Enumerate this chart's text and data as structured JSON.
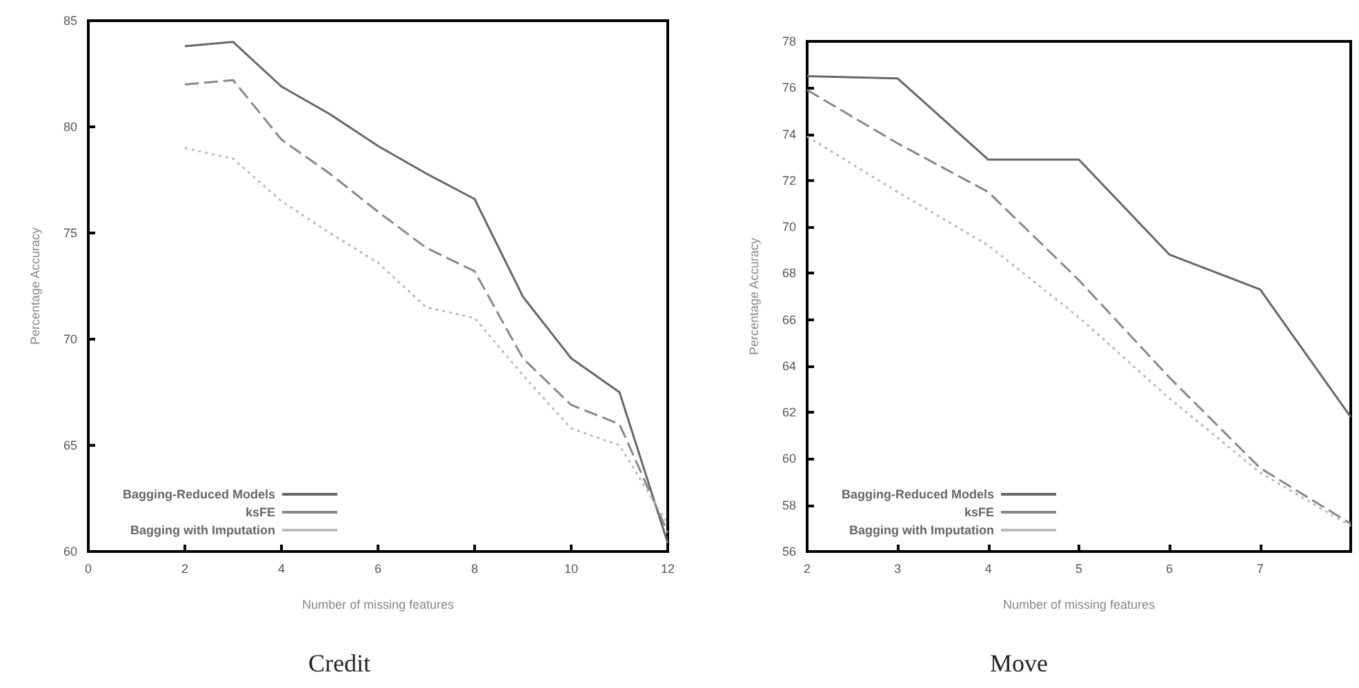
{
  "chart_data": [
    {
      "type": "line",
      "title": "Credit",
      "xlabel": "Number of missing features",
      "ylabel": "Percentage Accuracy",
      "x": [
        2,
        3,
        4,
        5,
        6,
        7,
        8,
        9,
        10,
        11,
        12
      ],
      "series": [
        {
          "name": "Bagging-Reduced Models",
          "color": "#666666",
          "line_style": "solid",
          "values": [
            83.8,
            84.0,
            81.9,
            80.6,
            79.1,
            77.8,
            76.6,
            72.0,
            69.1,
            67.5,
            60.4
          ]
        },
        {
          "name": "ksFE",
          "color": "#888888",
          "line_style": "dashed",
          "values": [
            82.0,
            82.2,
            79.4,
            77.8,
            76.0,
            74.3,
            73.2,
            69.1,
            66.9,
            66.0,
            60.9
          ]
        },
        {
          "name": "Bagging with Imputation",
          "color": "#bbbbbb",
          "line_style": "dotted",
          "values": [
            79.0,
            78.5,
            76.5,
            75.0,
            73.6,
            71.5,
            71.0,
            68.3,
            65.8,
            65.0,
            61.3
          ]
        }
      ],
      "xlim": [
        0,
        12
      ],
      "xticks": [
        0,
        2,
        4,
        6,
        8,
        10,
        12
      ],
      "ylim": [
        60,
        85
      ],
      "yticks": [
        60,
        65,
        70,
        75,
        80,
        85
      ],
      "grid": false,
      "legend": "bottom left",
      "marker": "none"
    },
    {
      "type": "line",
      "title": "Move",
      "xlabel": "Number of missing features",
      "ylabel": "Percentage Accuracy",
      "x": [
        2,
        3,
        4,
        5,
        6,
        7,
        8
      ],
      "series": [
        {
          "name": "Bagging-Reduced Models",
          "color": "#666666",
          "line_style": "solid",
          "values": [
            76.5,
            76.4,
            72.9,
            72.9,
            68.8,
            67.3,
            61.8
          ]
        },
        {
          "name": "ksFE",
          "color": "#888888",
          "line_style": "dashed",
          "values": [
            75.9,
            73.6,
            71.5,
            67.7,
            63.5,
            59.6,
            57.2
          ]
        },
        {
          "name": "Bagging with Imputation",
          "color": "#bbbbbb",
          "line_style": "dotted",
          "values": [
            73.9,
            71.5,
            69.2,
            66.1,
            62.6,
            59.4,
            57.1
          ]
        }
      ],
      "xlim": [
        2,
        8
      ],
      "xticks": [
        2,
        3,
        4,
        5,
        6,
        7
      ],
      "ylim": [
        56,
        78
      ],
      "yticks": [
        56,
        58,
        60,
        62,
        64,
        66,
        68,
        70,
        72,
        74,
        76,
        78
      ],
      "grid": false,
      "legend": "bottom left",
      "marker": "none"
    }
  ]
}
